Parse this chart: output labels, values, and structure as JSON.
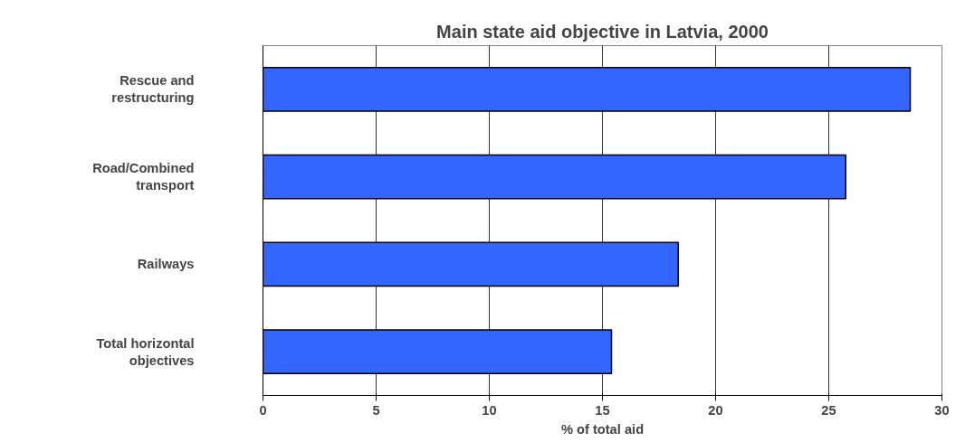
{
  "chart_data": {
    "type": "bar",
    "orientation": "horizontal",
    "title": "Main state aid objective in Latvia, 2000",
    "xlabel": "% of total aid",
    "categories": [
      "Rescue and\nrestructuring",
      "Road/Combined\ntransport",
      "Railways",
      "Total horizontal\nobjectives"
    ],
    "values": [
      28.6,
      25.75,
      18.35,
      15.4
    ],
    "color": "#3366ff",
    "xlim": [
      0,
      30
    ],
    "xticks": [
      0,
      5,
      10,
      15,
      20,
      25,
      30
    ],
    "grid": "x"
  }
}
